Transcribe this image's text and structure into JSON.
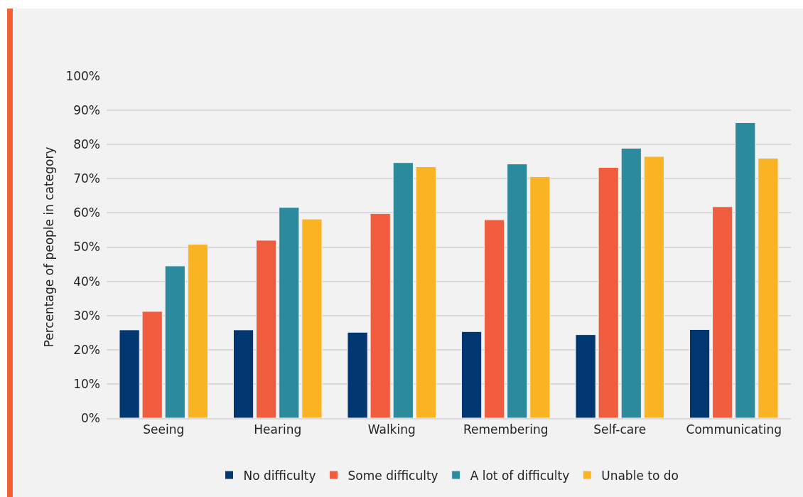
{
  "chart_data": {
    "type": "bar",
    "ylabel": "Percentage of people in category",
    "categories": [
      "Seeing",
      "Hearing",
      "Walking",
      "Remembering",
      "Self-care",
      "Communicating"
    ],
    "series": [
      {
        "name": "No difficulty",
        "color": "#003770",
        "values": [
          25.8,
          25.8,
          25.1,
          25.3,
          24.4,
          25.9
        ]
      },
      {
        "name": "Some difficulty",
        "color": "#f05d3e",
        "values": [
          31.2,
          52.0,
          59.8,
          58.0,
          73.3,
          61.8
        ]
      },
      {
        "name": "A lot of difficulty",
        "color": "#2b8a9c",
        "values": [
          44.5,
          61.6,
          74.7,
          74.3,
          78.9,
          86.4
        ]
      },
      {
        "name": "Unable to do",
        "color": "#fab323",
        "values": [
          50.8,
          58.2,
          73.5,
          70.6,
          76.5,
          76.0
        ]
      }
    ],
    "ylim": [
      0,
      100
    ],
    "yticks": [
      {
        "value": 0,
        "label": "0%"
      },
      {
        "value": 10,
        "label": "10%"
      },
      {
        "value": 20,
        "label": "20%"
      },
      {
        "value": 30,
        "label": "30%"
      },
      {
        "value": 40,
        "label": "40%"
      },
      {
        "value": 50,
        "label": "50%"
      },
      {
        "value": 60,
        "label": "60%"
      },
      {
        "value": 70,
        "label": "70%"
      },
      {
        "value": 80,
        "label": "80%"
      },
      {
        "value": 90,
        "label": "90%"
      },
      {
        "value": 100,
        "label": "100%"
      }
    ],
    "grid": "y",
    "legend": "bottom"
  }
}
